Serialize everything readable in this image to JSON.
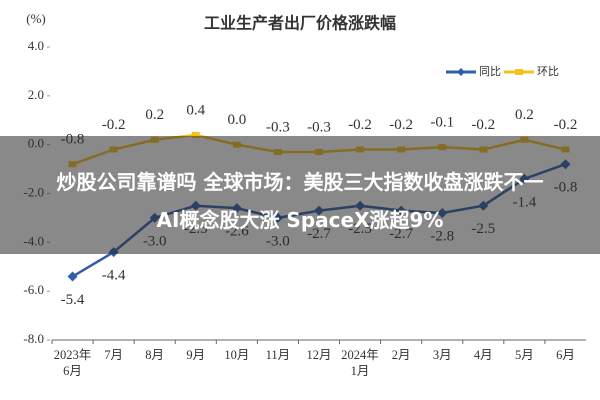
{
  "chart_data": {
    "type": "line",
    "title": "工业生产者出厂价格涨跌幅",
    "y_label": "(%)",
    "categories": [
      "2023年6月",
      "7月",
      "8月",
      "9月",
      "10月",
      "11月",
      "12月",
      "2024年1月",
      "2月",
      "3月",
      "4月",
      "5月",
      "6月"
    ],
    "series": [
      {
        "name": "同比",
        "color": "#2f5fa7",
        "values": [
          -5.4,
          -4.4,
          -3.0,
          -2.5,
          -2.6,
          -3.0,
          -2.7,
          -2.5,
          -2.7,
          -2.8,
          -2.5,
          -1.4,
          -0.8
        ],
        "value_labels": [
          "-5.4",
          "-4.4",
          "-3.0",
          "-2.5",
          "-2.6",
          "-3.0",
          "-2.7",
          "-2.5",
          "-2.7",
          "-2.8",
          "-2.5",
          "-1.4",
          "-0.8"
        ]
      },
      {
        "name": "环比",
        "color": "#f2c11c",
        "values": [
          -0.8,
          -0.2,
          0.2,
          0.4,
          0.0,
          -0.3,
          -0.3,
          -0.2,
          -0.2,
          -0.1,
          -0.2,
          0.2,
          -0.2
        ],
        "value_labels": [
          "-0.8",
          "-0.2",
          "0.2",
          "0.4",
          "0.0",
          "-0.3",
          "-0.3",
          "-0.2",
          "-0.2",
          "-0.1",
          "-0.2",
          "0.2",
          "-0.2"
        ]
      }
    ],
    "ylim": [
      -8,
      4
    ],
    "yticks": [
      {
        "value": 4,
        "label": "4.0"
      },
      {
        "value": 2,
        "label": "2.0"
      },
      {
        "value": 0,
        "label": "0.0"
      },
      {
        "value": -2,
        "label": "-2.0"
      },
      {
        "value": -4,
        "label": "-4.0"
      },
      {
        "value": -6,
        "label": "-6.0"
      },
      {
        "value": -8,
        "label": "-8.0"
      }
    ],
    "legend": "top-right"
  },
  "overlay": {
    "lines": [
      "炒股公司靠谱吗 全球市场：美股三大指数收盘涨跌不一",
      "AI概念股大涨 SpaceX涨超9%"
    ]
  }
}
